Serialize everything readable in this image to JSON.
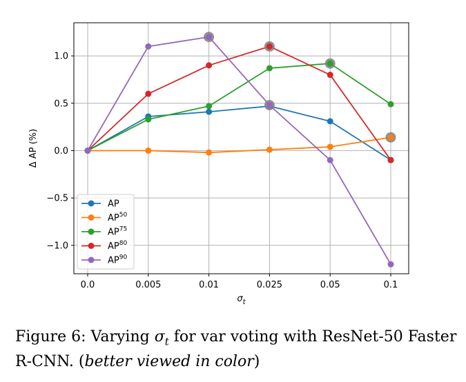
{
  "chart_data": {
    "type": "line",
    "categories": [
      "0.0",
      "0.005",
      "0.01",
      "0.025",
      "0.05",
      "0.1"
    ],
    "xlabel": "σt",
    "ylabel": "Δ AP (%)",
    "ylim": [
      -1.3,
      1.35
    ],
    "yticks": [
      -1.0,
      -0.5,
      0.0,
      0.5,
      1.0
    ],
    "ytick_labels": [
      "−1.0",
      "−0.5",
      "0.0",
      "0.5",
      "1.0"
    ],
    "grid": true,
    "legend_position": "lower-left",
    "series": [
      {
        "name": "AP",
        "sup": "",
        "color": "#1f77b4",
        "values": [
          0.0,
          0.36,
          0.41,
          0.47,
          0.31,
          -0.1
        ]
      },
      {
        "name": "AP",
        "sup": "50",
        "color": "#ff7f0e",
        "values": [
          0.0,
          0.0,
          -0.02,
          0.01,
          0.04,
          0.14
        ]
      },
      {
        "name": "AP",
        "sup": "75",
        "color": "#2ca02c",
        "values": [
          0.0,
          0.33,
          0.47,
          0.87,
          0.92,
          0.49
        ]
      },
      {
        "name": "AP",
        "sup": "80",
        "color": "#d62728",
        "values": [
          0.0,
          0.6,
          0.9,
          1.1,
          0.8,
          -0.1
        ]
      },
      {
        "name": "AP",
        "sup": "90",
        "color": "#9467bd",
        "values": [
          0.0,
          1.1,
          1.2,
          0.48,
          -0.1,
          -1.2
        ]
      }
    ],
    "highlighted_points": [
      {
        "series_index": 4,
        "category_index": 2
      },
      {
        "series_index": 3,
        "category_index": 3
      },
      {
        "series_index": 4,
        "category_index": 3
      },
      {
        "series_index": 2,
        "category_index": 4
      },
      {
        "series_index": 1,
        "category_index": 5
      }
    ],
    "highlight_color": "#7f7f7f"
  },
  "caption": {
    "prefix": "Figure 6: Varying ",
    "symbol": "σt",
    "middle": " for var voting with ResNet-50 Faster R-CNN. (",
    "italic": "better viewed in color",
    "suffix": ")"
  }
}
